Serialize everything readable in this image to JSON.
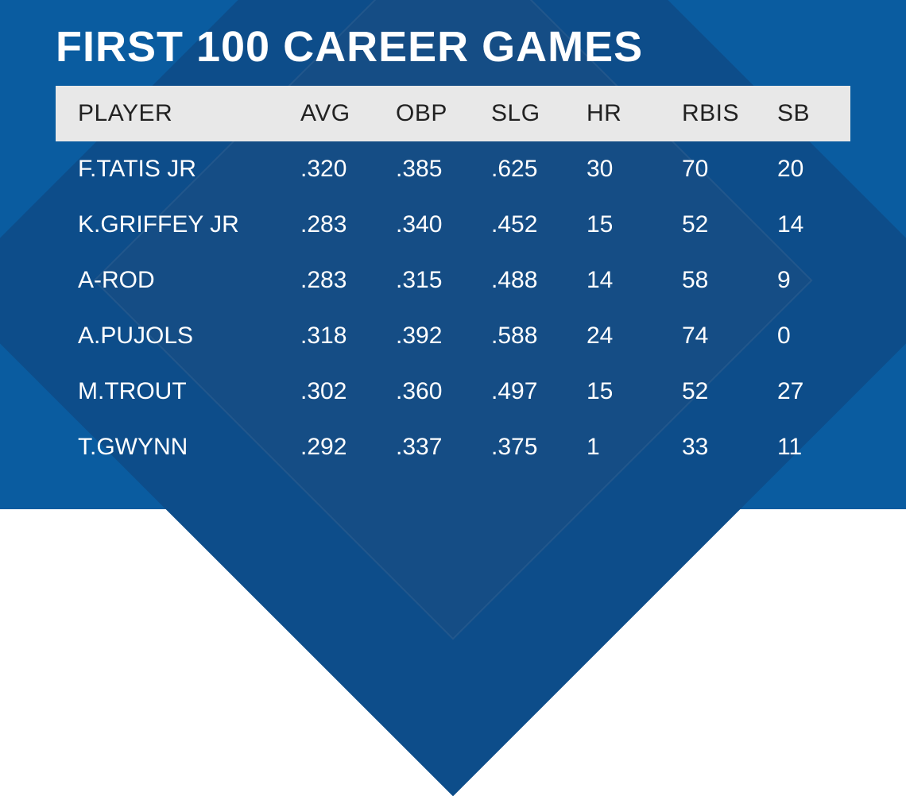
{
  "title": "FIRST 100 CAREER GAMES",
  "table": {
    "type": "table",
    "background_color": "#0a5ca0",
    "diamond_color_outer": "#0d4d8a",
    "diamond_color_inner": "#154d85",
    "header_bg": "#e8e8e8",
    "header_text_color": "#222222",
    "body_text_color": "#ffffff",
    "title_fontsize": 54,
    "cell_fontsize": 30,
    "columns": [
      "PLAYER",
      "AVG",
      "OBP",
      "SLG",
      "HR",
      "RBIS",
      "SB"
    ],
    "column_widths_pct": [
      28,
      12,
      12,
      12,
      12,
      12,
      12
    ],
    "rows": [
      [
        "F.TATIS JR",
        ".320",
        ".385",
        ".625",
        "30",
        "70",
        "20"
      ],
      [
        "K.GRIFFEY JR",
        ".283",
        ".340",
        ".452",
        "15",
        "52",
        "14"
      ],
      [
        "A-ROD",
        ".283",
        ".315",
        ".488",
        "14",
        "58",
        "9"
      ],
      [
        "A.PUJOLS",
        ".318",
        ".392",
        ".588",
        "24",
        "74",
        "0"
      ],
      [
        "M.TROUT",
        ".302",
        ".360",
        ".497",
        "15",
        "52",
        "27"
      ],
      [
        "T.GWYNN",
        ".292",
        ".337",
        ".375",
        "1",
        "33",
        "11"
      ]
    ]
  }
}
